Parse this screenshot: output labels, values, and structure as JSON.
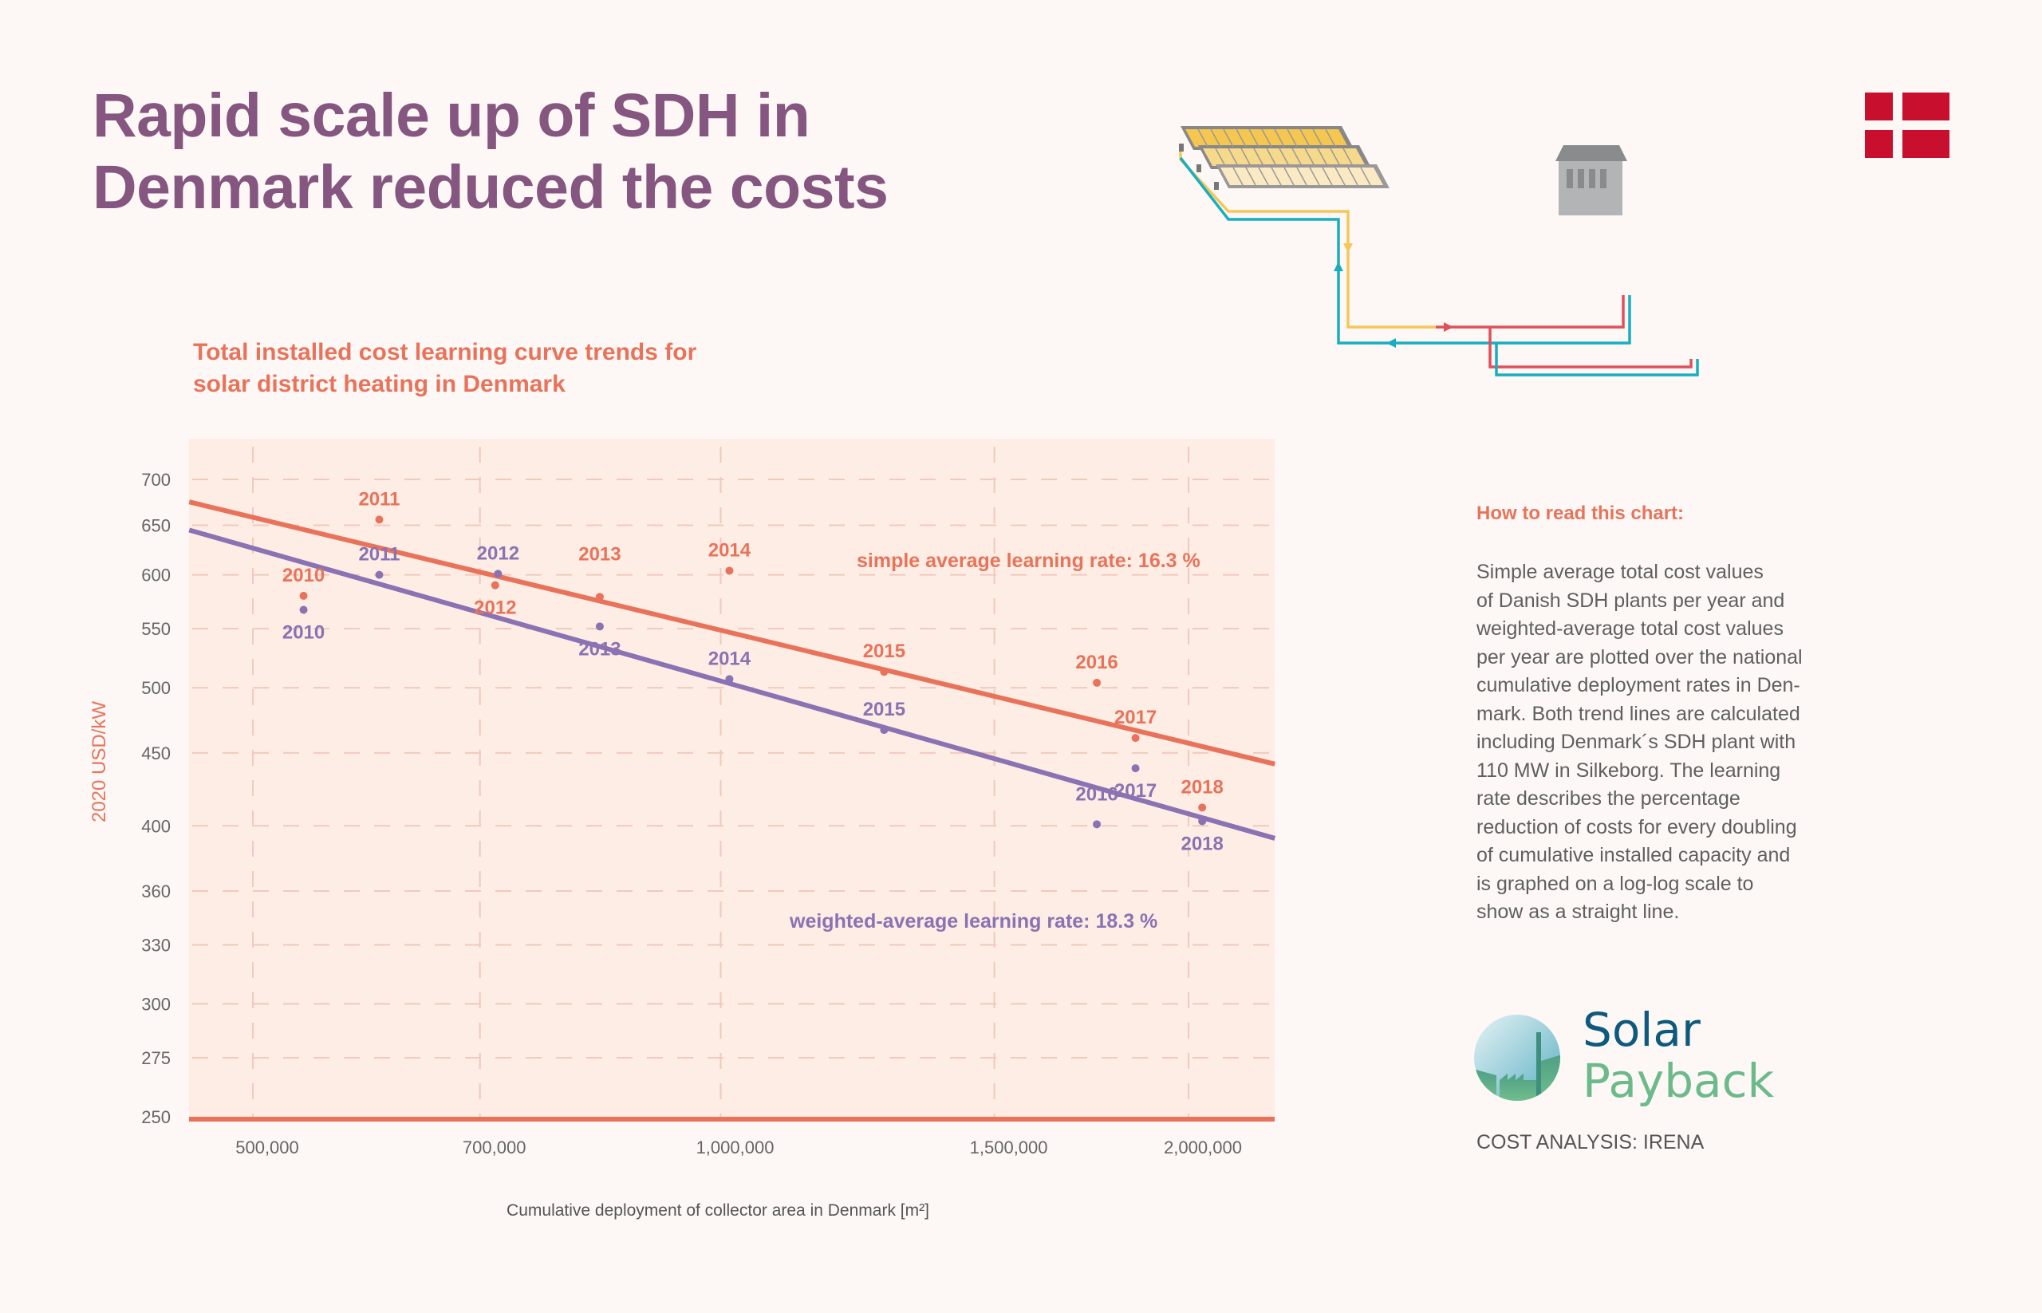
{
  "header": {
    "title_lines": [
      "Rapid scale up of SDH in",
      "Denmark reduced the costs"
    ]
  },
  "flag": {
    "country": "Denmark",
    "icon": "danish-flag-icon",
    "color": "#c8102e"
  },
  "illustration": {
    "icon": "solar-district-heating-diagram-icon"
  },
  "colors": {
    "title": "#85567f",
    "accent": "#e8735a",
    "simple_series": "#e8735a",
    "weighted_series": "#8a72b3",
    "plot_background": "#fdede4",
    "gridline": "#f1c9bd"
  },
  "chart_data": {
    "type": "scatter",
    "title": "Total installed cost learning curve trends for solar district heating in Denmark",
    "title_lines": [
      "Total installed cost learning curve trends for",
      "solar district heating in Denmark"
    ],
    "xlabel": "Cumulative deployment of collector area in Denmark [m²]",
    "ylabel": "2020 USD/kW",
    "xscale": "log",
    "yscale": "log",
    "xlim": [
      455000,
      2273000
    ],
    "ylim": [
      250,
      725
    ],
    "grid": true,
    "x_ticks": [
      500000,
      700000,
      1000000,
      1500000,
      2000000
    ],
    "x_tick_labels": [
      "500,000",
      "700,000",
      "1,000,000",
      "1,500,000",
      "2,000,000"
    ],
    "y_ticks": [
      700,
      650,
      600,
      550,
      500,
      450,
      400,
      360,
      330,
      300,
      275,
      250
    ],
    "y_tick_labels": [
      "700",
      "650",
      "600",
      "550",
      "500",
      "450",
      "400",
      "360",
      "330",
      "300",
      "275",
      "250"
    ],
    "series": [
      {
        "name": "simple average",
        "color": "#e8735a",
        "points": [
          {
            "year": "2010",
            "x": 539000,
            "y": 580,
            "label_pos": "above"
          },
          {
            "year": "2011",
            "x": 603000,
            "y": 656,
            "label_pos": "above"
          },
          {
            "year": "2012",
            "x": 716000,
            "y": 590,
            "label_pos": "below"
          },
          {
            "year": "2013",
            "x": 836000,
            "y": 579,
            "label_pos": "above-high"
          },
          {
            "year": "2014",
            "x": 1013000,
            "y": 604,
            "label_pos": "above"
          },
          {
            "year": "2015",
            "x": 1274000,
            "y": 513,
            "label_pos": "above"
          },
          {
            "year": "2016",
            "x": 1746000,
            "y": 504,
            "label_pos": "above"
          },
          {
            "year": "2017",
            "x": 1849000,
            "y": 461,
            "label_pos": "above"
          },
          {
            "year": "2018",
            "x": 2041000,
            "y": 412,
            "label_pos": "above"
          }
        ],
        "trend_line": {
          "x": [
            455000,
            2273000
          ],
          "y": [
            675,
            442
          ]
        },
        "annotation": "simple average learning rate: 16.3 %",
        "learning_rate_percent": 16.3
      },
      {
        "name": "weighted average",
        "color": "#8a72b3",
        "points": [
          {
            "year": "2010",
            "x": 539000,
            "y": 567,
            "label_pos": "below"
          },
          {
            "year": "2011",
            "x": 603000,
            "y": 600,
            "label_pos": "above"
          },
          {
            "year": "2012",
            "x": 719000,
            "y": 601,
            "label_pos": "above"
          },
          {
            "year": "2013",
            "x": 836000,
            "y": 552,
            "label_pos": "below"
          },
          {
            "year": "2014",
            "x": 1013000,
            "y": 507,
            "label_pos": "above"
          },
          {
            "year": "2015",
            "x": 1274000,
            "y": 467,
            "label_pos": "above"
          },
          {
            "year": "2016",
            "x": 1746000,
            "y": 401,
            "label_pos": "above-high"
          },
          {
            "year": "2017",
            "x": 1849000,
            "y": 439,
            "label_pos": "below"
          },
          {
            "year": "2018",
            "x": 2041000,
            "y": 403,
            "label_pos": "below"
          }
        ],
        "trend_line": {
          "x": [
            455000,
            2273000
          ],
          "y": [
            645,
            392
          ]
        },
        "annotation": "weighted-average learning rate: 18.3 %",
        "learning_rate_percent": 18.3
      }
    ]
  },
  "info_panel": {
    "heading": "How to read this chart:",
    "body_lines": [
      "Simple average total cost values",
      "of Danish SDH plants per year and",
      "weighted-average total cost values",
      "per year are plotted over the national",
      "cumulative deployment rates in Den-",
      "mark. Both trend lines are calculated",
      "including Denmark´s SDH plant with",
      "110 MW in Silkeborg. The learning",
      "rate describes the percentage",
      "reduction of costs for every doubling",
      "of cumulative installed capacity and",
      "is graphed on a log-log scale to",
      "show as a straight line."
    ]
  },
  "logo": {
    "line1": "Solar",
    "line2": "Payback",
    "icon": "factory-globe-logo-icon"
  },
  "credit": "COST ANALYSIS: IRENA"
}
